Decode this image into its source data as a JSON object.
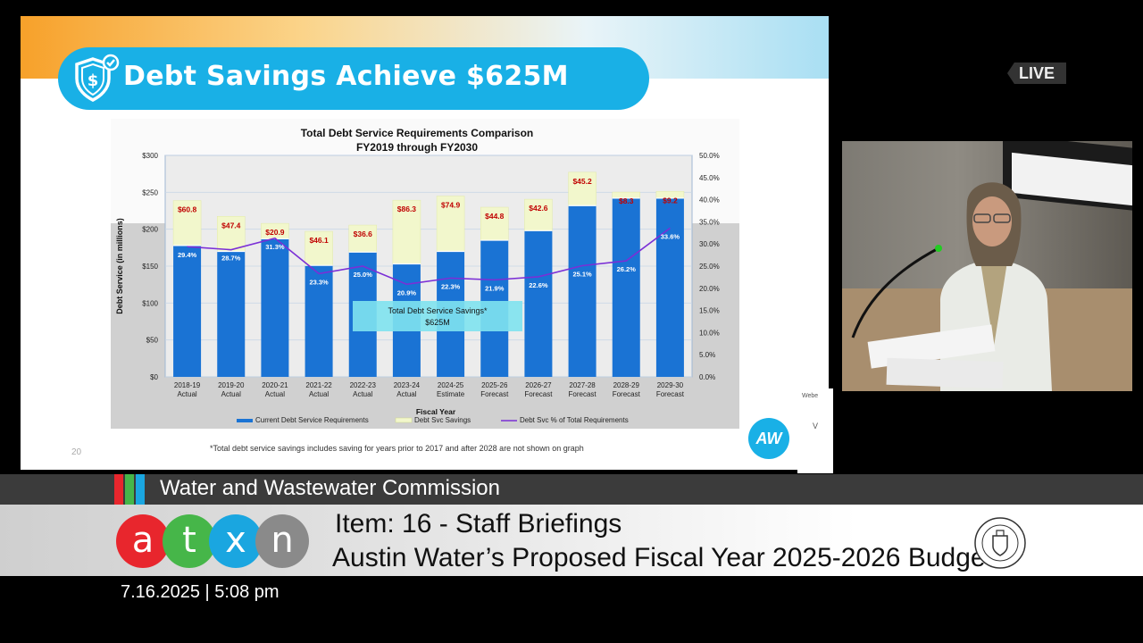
{
  "slide": {
    "title": "Debt Savings Achieve $625M",
    "page_number": "20",
    "footnote": "*Total debt service savings includes saving for years prior to 2017 and after 2028 are not shown on graph",
    "logo_text": "AW"
  },
  "live_label": "LIVE",
  "side": {
    "web": "Webe",
    "v": "V"
  },
  "lower_third": {
    "commission": "Water and Wastewater Commission",
    "item": "Item: 16 - Staff Briefings",
    "subject": "Austin Water’s Proposed Fiscal Year 2025-2026 Budget",
    "timestamp": "7.16.2025 | 5:08 pm",
    "logo_letters": [
      "a",
      "t",
      "x",
      "n"
    ]
  },
  "colors": {
    "title_pill": "#19b0e6",
    "bar_current": "#1a73d4",
    "bar_savings": "#f2f7cc",
    "line_pct": "#7b2fd6",
    "savings_label": "#c00000",
    "callout": "#7fe3ef",
    "atxn_a": "#e8262d",
    "atxn_t": "#46b649",
    "atxn_x": "#1aa6e0",
    "atxn_n": "#8a8a8a"
  },
  "chart_data": {
    "type": "bar",
    "title": "Total Debt Service Requirements Comparison",
    "subtitle": "FY2019 through FY2030",
    "xlabel": "Fiscal Year",
    "ylabel": "Debt Service (in millions)",
    "categories": [
      [
        "2018-19",
        "Actual"
      ],
      [
        "2019-20",
        "Actual"
      ],
      [
        "2020-21",
        "Actual"
      ],
      [
        "2021-22",
        "Actual"
      ],
      [
        "2022-23",
        "Actual"
      ],
      [
        "2023-24",
        "Actual"
      ],
      [
        "2024-25",
        "Estimate"
      ],
      [
        "2025-26",
        "Forecast"
      ],
      [
        "2026-27",
        "Forecast"
      ],
      [
        "2027-28",
        "Forecast"
      ],
      [
        "2028-29",
        "Forecast"
      ],
      [
        "2029-30",
        "Forecast"
      ]
    ],
    "ylim": [
      0,
      300
    ],
    "y_ticks": [
      "$0",
      "$50",
      "$100",
      "$150",
      "$200",
      "$250",
      "$300"
    ],
    "y2lim": [
      0,
      50
    ],
    "y2_ticks": [
      "0.0%",
      "5.0%",
      "10.0%",
      "15.0%",
      "20.0%",
      "25.0%",
      "30.0%",
      "35.0%",
      "40.0%",
      "45.0%",
      "50.0%"
    ],
    "series": [
      {
        "name": "Current Debt Service Requirements",
        "kind": "bar",
        "values": [
          178,
          170,
          187,
          151,
          169,
          153,
          170,
          185,
          198,
          232,
          242,
          242
        ]
      },
      {
        "name": "Debt Svc Savings",
        "kind": "stacked-bar",
        "values": [
          60.8,
          47.4,
          20.9,
          46.1,
          36.6,
          86.3,
          74.9,
          44.8,
          42.6,
          45.2,
          8.3,
          9.2
        ],
        "labels": [
          "$60.8",
          "$47.4",
          "$20.9",
          "$46.1",
          "$36.6",
          "$86.3",
          "$74.9",
          "$44.8",
          "$42.6",
          "$45.2",
          "$8.3",
          "$9.2"
        ]
      },
      {
        "name": "Debt Svc % of Total Requirements",
        "kind": "line",
        "axis": "right",
        "values": [
          29.4,
          28.7,
          31.3,
          23.3,
          25.0,
          20.9,
          22.3,
          21.9,
          22.6,
          25.1,
          26.2,
          33.6
        ],
        "labels": [
          "29.4%",
          "28.7%",
          "31.3%",
          "23.3%",
          "25.0%",
          "20.9%",
          "22.3%",
          "21.9%",
          "22.6%",
          "25.1%",
          "26.2%",
          "33.6%"
        ]
      }
    ],
    "annotation": {
      "text": "Total Debt Service Savings*",
      "value": "$625M"
    },
    "legend_placement": "bottom",
    "grid": true
  }
}
